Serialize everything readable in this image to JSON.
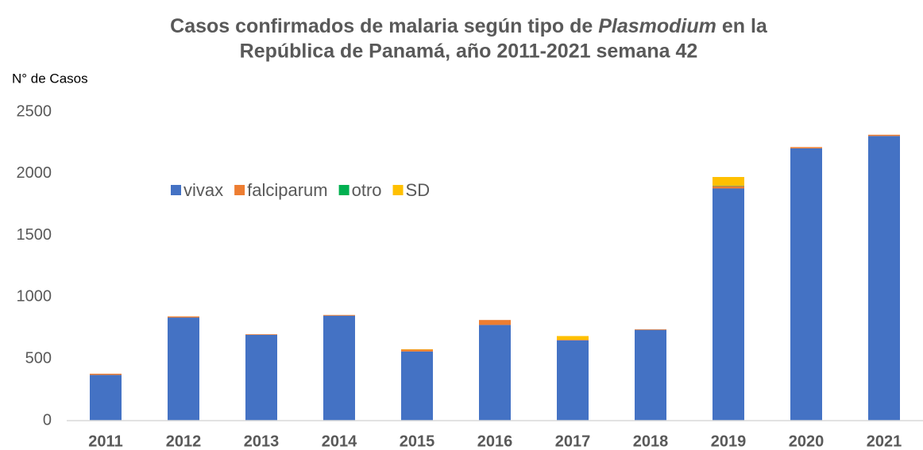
{
  "chart_data": {
    "type": "stacked_bar",
    "title": [
      "Casos confirmados de malaria según tipo de",
      "Plasmodium",
      "en la",
      "República de Panamá, año 2011-2021 semana 42"
    ],
    "y_label": "N° de Casos",
    "categories": [
      "2011",
      "2012",
      "2013",
      "2014",
      "2015",
      "2016",
      "2017",
      "2018",
      "2019",
      "2020",
      "2021"
    ],
    "series": [
      {
        "name": "vivax",
        "color": "#4472c4",
        "values": [
          370,
          835,
          695,
          850,
          560,
          775,
          650,
          735,
          1880,
          2205,
          2305
        ]
      },
      {
        "name": "falciparum",
        "color": "#ed7d31",
        "values": [
          10,
          9,
          5,
          6,
          15,
          40,
          5,
          5,
          20,
          10,
          10
        ]
      },
      {
        "name": "otro",
        "color": "#00b050",
        "values": [
          0,
          0,
          0,
          0,
          0,
          0,
          0,
          0,
          3,
          0,
          0
        ]
      },
      {
        "name": "SD",
        "color": "#ffc000",
        "values": [
          0,
          0,
          0,
          0,
          3,
          0,
          30,
          0,
          70,
          0,
          0
        ]
      }
    ],
    "ylim": [
      0,
      2500
    ],
    "yticks": [
      0,
      500,
      1000,
      1500,
      2000,
      2500
    ],
    "grid": false,
    "legend": "top-left"
  }
}
